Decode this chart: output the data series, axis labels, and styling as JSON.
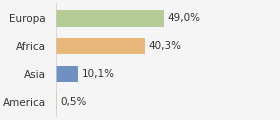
{
  "categories": [
    "Europa",
    "Africa",
    "Asia",
    "America"
  ],
  "values": [
    49.0,
    40.3,
    10.1,
    0.5
  ],
  "labels": [
    "49,0%",
    "40,3%",
    "10,1%",
    "0,5%"
  ],
  "bar_colors": [
    "#b5cc96",
    "#e8b87a",
    "#7090bf",
    "#f0d080"
  ],
  "background_color": "#f5f5f5",
  "xlim": [
    0,
    100
  ],
  "bar_height": 0.6,
  "label_fontsize": 7.5,
  "tick_fontsize": 7.5
}
